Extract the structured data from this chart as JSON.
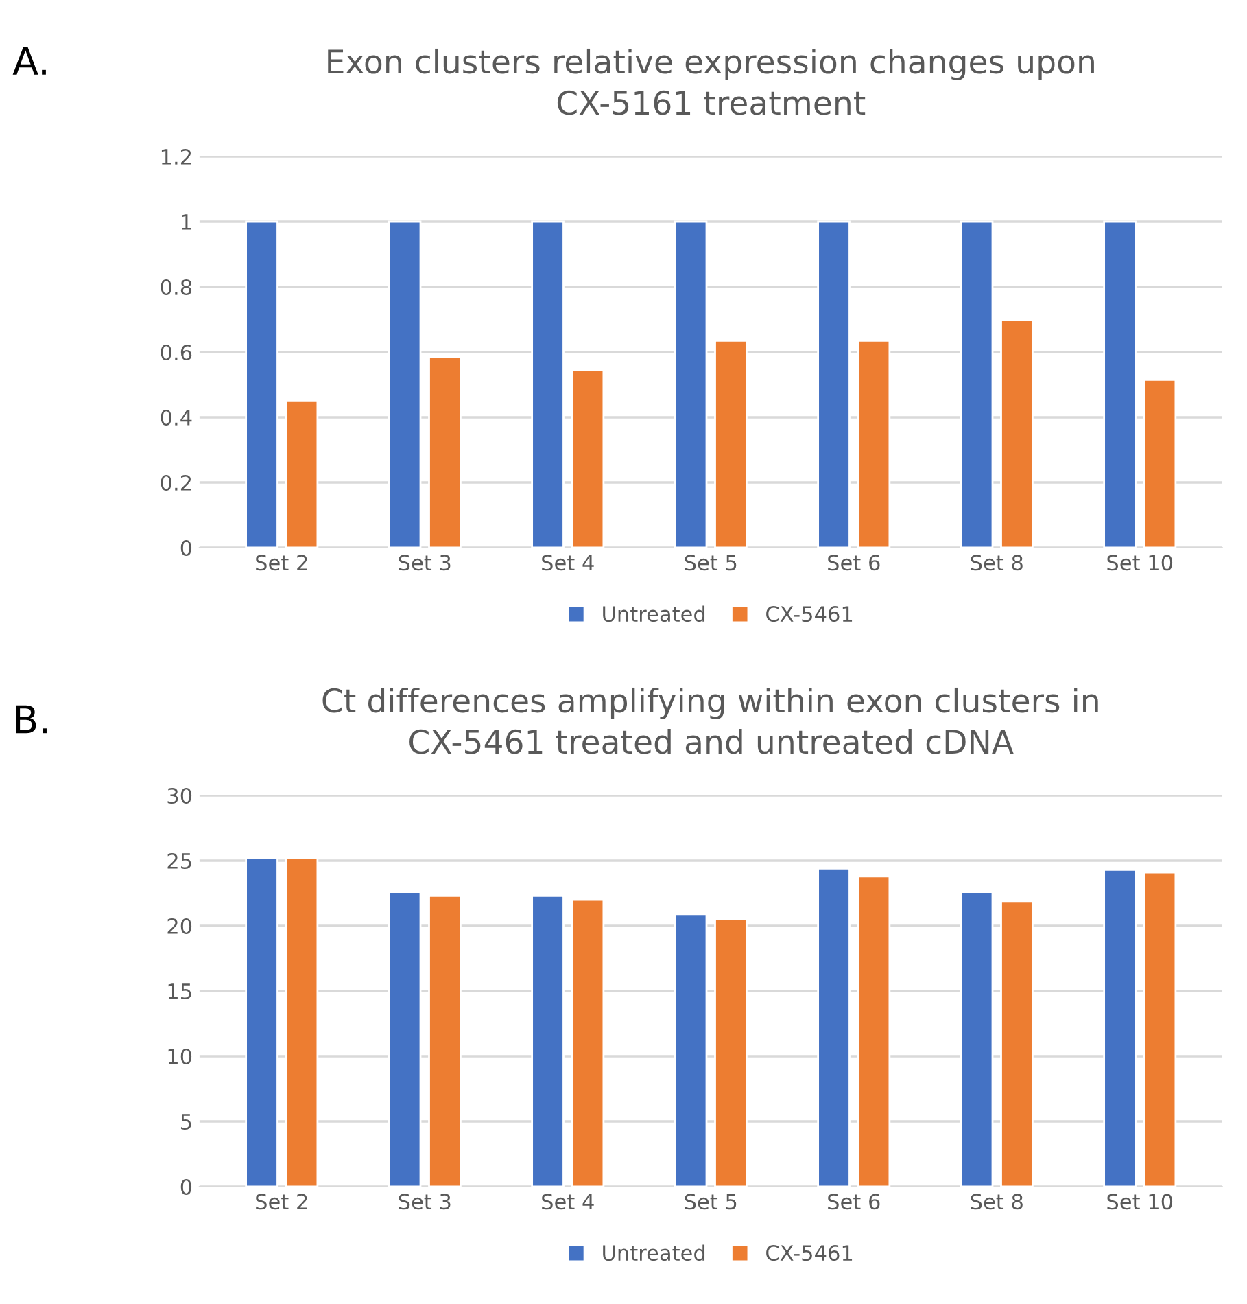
{
  "chart_data": [
    {
      "type": "bar",
      "title": "Exon clusters relative expression changes upon\nCX-5161 treatment",
      "annotations": [
        "A."
      ],
      "categories": [
        "Set 2",
        "Set 3",
        "Set 4",
        "Set 5",
        "Set 6",
        "Set 8",
        "Set 10"
      ],
      "series": [
        {
          "name": "Untreated",
          "color": "#4472c4",
          "values": [
            1,
            1,
            1,
            1,
            1,
            1,
            1
          ]
        },
        {
          "name": "CX-5461",
          "color": "#ed7d31",
          "values": [
            0.45,
            0.585,
            0.545,
            0.635,
            0.635,
            0.7,
            0.515
          ]
        }
      ],
      "ylim": [
        0,
        1.2
      ],
      "yticks": [
        0,
        0.2,
        0.4,
        0.6,
        0.8,
        1,
        1.2
      ],
      "grid": "y",
      "legend": "bottom"
    },
    {
      "type": "bar",
      "title": "Ct differences amplifying within exon clusters in\nCX-5461 treated and untreated cDNA",
      "annotations": [
        "B."
      ],
      "categories": [
        "Set 2",
        "Set 3",
        "Set 4",
        "Set 5",
        "Set 6",
        "Set 8",
        "Set 10"
      ],
      "series": [
        {
          "name": "Untreated",
          "color": "#4472c4",
          "values": [
            25.2,
            22.6,
            22.3,
            20.9,
            24.4,
            22.6,
            24.3
          ]
        },
        {
          "name": "CX-5461",
          "color": "#ed7d31",
          "values": [
            25.2,
            22.3,
            22.0,
            20.5,
            23.8,
            21.9,
            24.1
          ]
        }
      ],
      "ylim": [
        0,
        30
      ],
      "yticks": [
        0,
        5,
        10,
        15,
        20,
        25,
        30
      ],
      "grid": "y",
      "legend": "bottom"
    }
  ]
}
